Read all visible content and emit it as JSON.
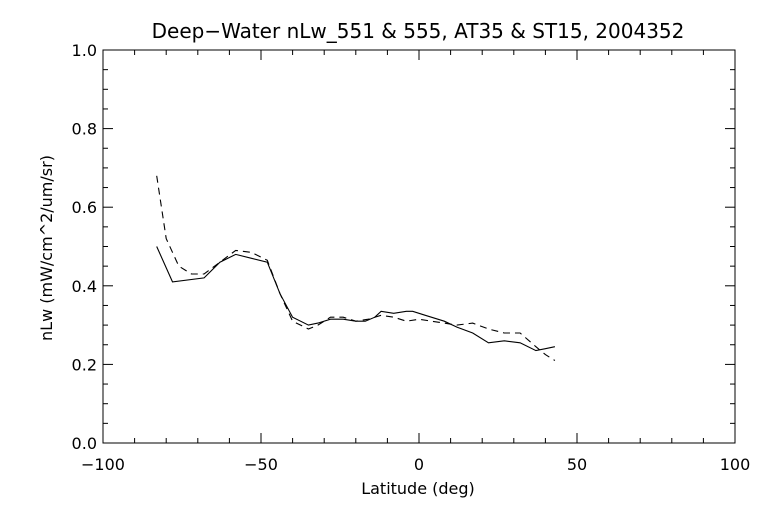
{
  "chart_data": {
    "type": "line",
    "title": "Deep−Water nLw_551 & 555, AT35 & ST15, 2004352",
    "xlabel": "Latitude (deg)",
    "ylabel": "nLw (mW/cm^2/um/sr)",
    "xlim": [
      -100,
      100
    ],
    "ylim": [
      0.0,
      1.0
    ],
    "xticks": [
      "−100",
      "−50",
      "0",
      "50",
      "100"
    ],
    "yticks": [
      "0.0",
      "0.2",
      "0.4",
      "0.6",
      "0.8",
      "1.0"
    ],
    "grid": false,
    "legend": "none",
    "series": [
      {
        "style": "solid",
        "x": [
          -83,
          -78,
          -68,
          -63,
          -58,
          -53,
          -48,
          -44,
          -40,
          -35,
          -32,
          -28,
          -24,
          -20,
          -17,
          -14,
          -12,
          -8,
          -4,
          -2,
          2,
          8,
          12,
          17,
          22,
          27,
          32,
          37,
          40,
          43
        ],
        "y": [
          0.5,
          0.41,
          0.42,
          0.46,
          0.48,
          0.47,
          0.46,
          0.38,
          0.32,
          0.3,
          0.305,
          0.315,
          0.315,
          0.31,
          0.31,
          0.32,
          0.335,
          0.33,
          0.335,
          0.335,
          0.325,
          0.31,
          0.295,
          0.28,
          0.255,
          0.26,
          0.255,
          0.235,
          0.24,
          0.245
        ]
      },
      {
        "style": "dashed",
        "x": [
          -83,
          -80,
          -76,
          -72,
          -68,
          -63,
          -58,
          -53,
          -48,
          -44,
          -40,
          -35,
          -32,
          -28,
          -24,
          -20,
          -16,
          -12,
          -8,
          -4,
          0,
          4,
          8,
          12,
          17,
          22,
          27,
          32,
          37,
          40,
          43
        ],
        "y": [
          0.68,
          0.52,
          0.45,
          0.43,
          0.43,
          0.46,
          0.49,
          0.485,
          0.465,
          0.38,
          0.31,
          0.29,
          0.3,
          0.32,
          0.32,
          0.31,
          0.315,
          0.325,
          0.32,
          0.31,
          0.315,
          0.31,
          0.305,
          0.3,
          0.305,
          0.29,
          0.28,
          0.28,
          0.245,
          0.225,
          0.21
        ]
      }
    ]
  }
}
